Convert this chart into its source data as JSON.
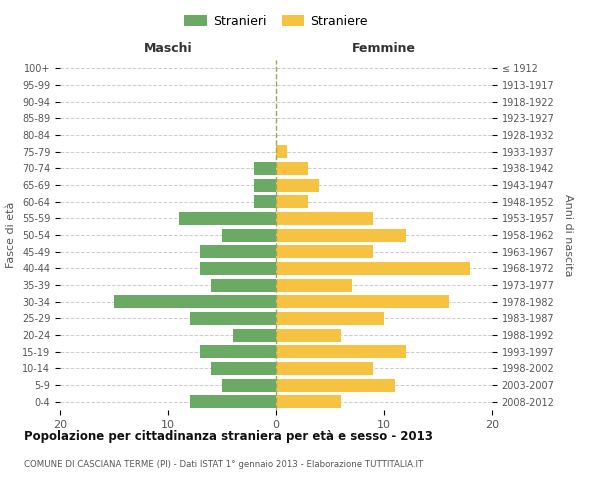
{
  "age_groups": [
    "0-4",
    "5-9",
    "10-14",
    "15-19",
    "20-24",
    "25-29",
    "30-34",
    "35-39",
    "40-44",
    "45-49",
    "50-54",
    "55-59",
    "60-64",
    "65-69",
    "70-74",
    "75-79",
    "80-84",
    "85-89",
    "90-94",
    "95-99",
    "100+"
  ],
  "birth_years": [
    "2008-2012",
    "2003-2007",
    "1998-2002",
    "1993-1997",
    "1988-1992",
    "1983-1987",
    "1978-1982",
    "1973-1977",
    "1968-1972",
    "1963-1967",
    "1958-1962",
    "1953-1957",
    "1948-1952",
    "1943-1947",
    "1938-1942",
    "1933-1937",
    "1928-1932",
    "1923-1927",
    "1918-1922",
    "1913-1917",
    "≤ 1912"
  ],
  "males": [
    8,
    5,
    6,
    7,
    4,
    8,
    15,
    6,
    7,
    7,
    5,
    9,
    2,
    2,
    2,
    0,
    0,
    0,
    0,
    0,
    0
  ],
  "females": [
    6,
    11,
    9,
    12,
    6,
    10,
    16,
    7,
    18,
    9,
    12,
    9,
    3,
    4,
    3,
    1,
    0,
    0,
    0,
    0,
    0
  ],
  "male_color": "#6aaa64",
  "female_color": "#f5c242",
  "background_color": "#ffffff",
  "grid_color": "#cccccc",
  "title": "Popolazione per cittadinanza straniera per età e sesso - 2013",
  "subtitle": "COMUNE DI CASCIANA TERME (PI) - Dati ISTAT 1° gennaio 2013 - Elaborazione TUTTITALIA.IT",
  "xlabel_left": "Maschi",
  "xlabel_right": "Femmine",
  "ylabel_left": "Fasce di età",
  "ylabel_right": "Anni di nascita",
  "xlim": 20,
  "legend_stranieri": "Stranieri",
  "legend_straniere": "Straniere"
}
